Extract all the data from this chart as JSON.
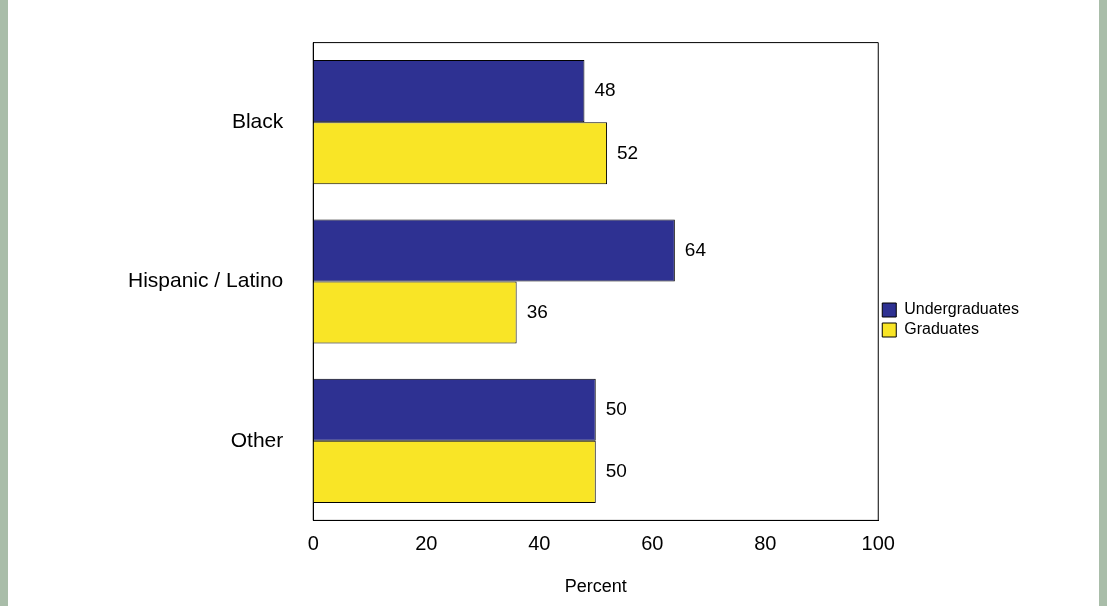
{
  "chart_data": {
    "type": "bar",
    "orientation": "horizontal",
    "categories": [
      "Black",
      "Hispanic / Latino",
      "Other"
    ],
    "series": [
      {
        "name": "Undergraduates",
        "color": "#2e3192",
        "values": [
          48,
          64,
          50
        ]
      },
      {
        "name": "Graduates",
        "color": "#f9e526",
        "values": [
          52,
          36,
          50
        ]
      }
    ],
    "xlabel": "Percent",
    "xlim": [
      0,
      100
    ],
    "xticks": [
      0,
      20,
      40,
      60,
      80,
      100
    ],
    "grid": false,
    "legend": "right",
    "data_labels": true
  }
}
